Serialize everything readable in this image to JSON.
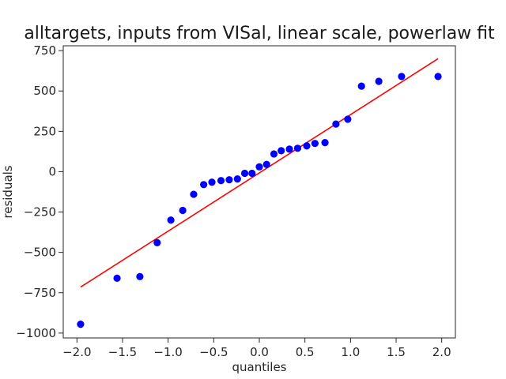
{
  "chart_data": {
    "type": "scatter",
    "title": "alltargets, inputs from VISal, linear scale, powerlaw fit",
    "xlabel": "quantiles",
    "ylabel": "residuals",
    "xlim": [
      -2.15,
      2.15
    ],
    "ylim": [
      -1030,
      780
    ],
    "xticks": [
      -2.0,
      -1.5,
      -1.0,
      -0.5,
      0.0,
      0.5,
      1.0,
      1.5,
      2.0
    ],
    "xtick_labels": [
      "−2.0",
      "−1.5",
      "−1.0",
      "−0.5",
      "0.0",
      "0.5",
      "1.0",
      "1.5",
      "2.0"
    ],
    "yticks": [
      -1000,
      -750,
      -500,
      -250,
      0,
      250,
      500,
      750
    ],
    "ytick_labels": [
      "−1000",
      "−750",
      "−500",
      "−250",
      "0",
      "250",
      "500",
      "750"
    ],
    "grid": false,
    "series": [
      {
        "kind": "points",
        "color": "#0000ff",
        "x": [
          -1.96,
          -1.56,
          -1.31,
          -1.12,
          -0.97,
          -0.84,
          -0.72,
          -0.61,
          -0.52,
          -0.42,
          -0.33,
          -0.24,
          -0.16,
          -0.08,
          0.0,
          0.08,
          0.16,
          0.24,
          0.33,
          0.42,
          0.52,
          0.61,
          0.72,
          0.84,
          0.97,
          1.12,
          1.31,
          1.56,
          1.96
        ],
        "y": [
          -945,
          -660,
          -650,
          -440,
          -300,
          -240,
          -140,
          -80,
          -65,
          -55,
          -50,
          -45,
          -10,
          -10,
          30,
          45,
          110,
          130,
          140,
          145,
          160,
          175,
          180,
          295,
          325,
          530,
          560,
          590,
          590
        ]
      },
      {
        "kind": "line",
        "color": "#ff0000",
        "x": [
          -1.96,
          1.96
        ],
        "y": [
          -715,
          700
        ]
      }
    ]
  }
}
